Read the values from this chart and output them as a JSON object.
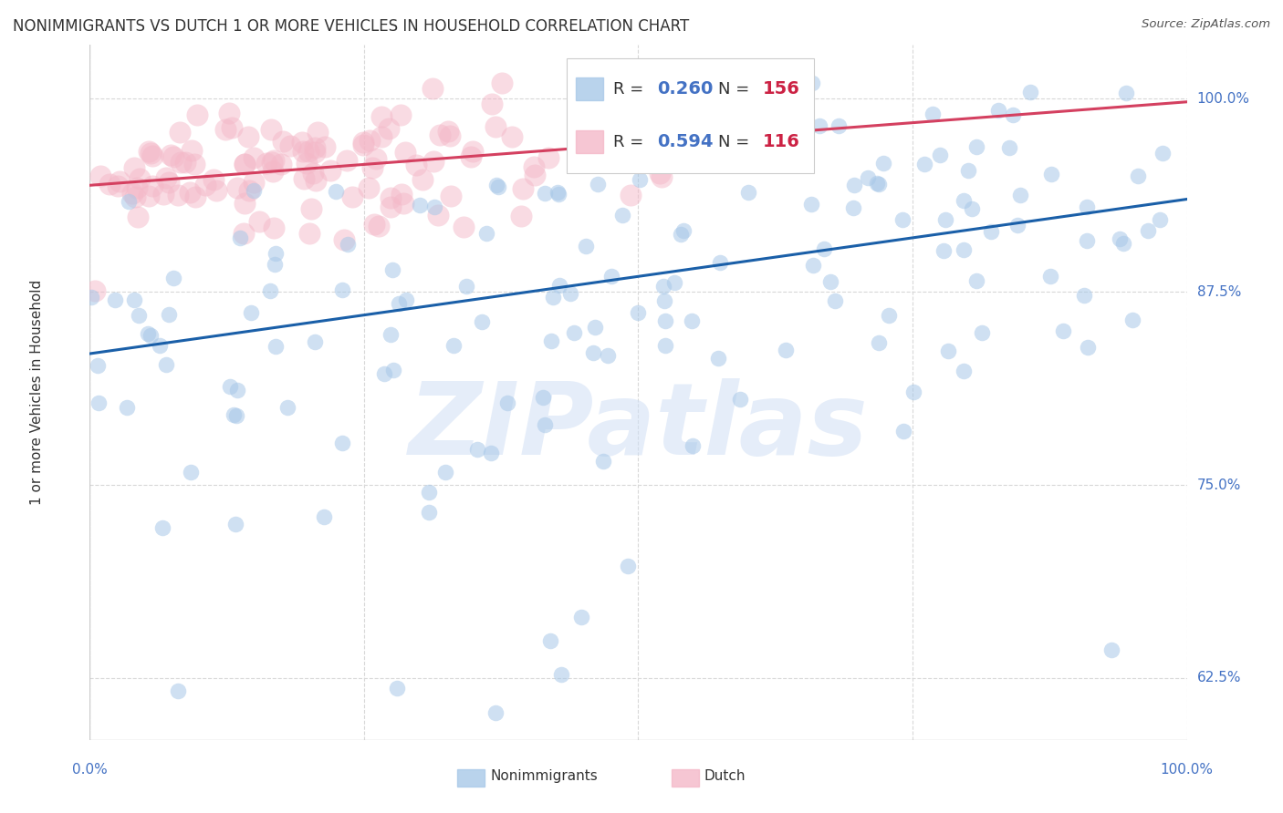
{
  "title": "NONIMMIGRANTS VS DUTCH 1 OR MORE VEHICLES IN HOUSEHOLD CORRELATION CHART",
  "source": "Source: ZipAtlas.com",
  "ylabel": "1 or more Vehicles in Household",
  "xlim": [
    0.0,
    1.0
  ],
  "ylim": [
    0.585,
    1.035
  ],
  "yticks": [
    0.625,
    0.75,
    0.875,
    1.0
  ],
  "ytick_labels": [
    "62.5%",
    "75.0%",
    "87.5%",
    "100.0%"
  ],
  "xticks": [
    0.0,
    0.25,
    0.5,
    0.75,
    1.0
  ],
  "nonimm_color": "#a8c8e8",
  "dutch_color": "#f4b8c8",
  "nonimm_line_color": "#1a5fa8",
  "dutch_line_color": "#d44060",
  "nonimm_R": 0.26,
  "nonimm_N": 156,
  "dutch_R": 0.594,
  "dutch_N": 116,
  "nonimm_line_x0": 0.0,
  "nonimm_line_y0": 0.835,
  "nonimm_line_x1": 1.0,
  "nonimm_line_y1": 0.935,
  "dutch_line_x0": 0.0,
  "dutch_line_y0": 0.944,
  "dutch_line_x1": 1.0,
  "dutch_line_y1": 0.998,
  "background_color": "#ffffff",
  "grid_color": "#d8d8d8",
  "tick_color": "#4472c4",
  "watermark_color": "#d0dff5",
  "watermark_alpha": 0.55,
  "title_fontsize": 12,
  "legend_R_color": "#4472c4",
  "legend_N_color": "#cc2244"
}
